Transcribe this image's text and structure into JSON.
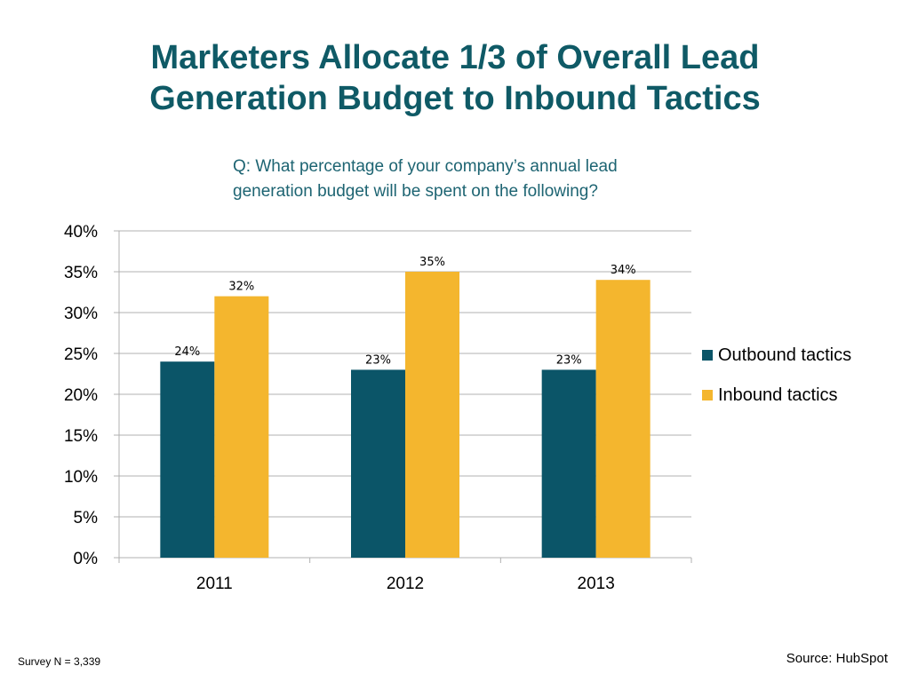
{
  "slide": {
    "title_line1": "Marketers Allocate 1/3 of Overall Lead",
    "title_line2": "Generation Budget to Inbound Tactics",
    "question_line1": "Q: What percentage of your company’s annual lead",
    "question_line2": "generation budget will be spent on the following?",
    "footer_left": "Survey N = 3,339",
    "footer_right": "Source: HubSpot"
  },
  "colors": {
    "title": "#0f5a66",
    "outbound": "#0b5568",
    "inbound": "#f4b62e",
    "grid": "#b0b0b0"
  },
  "chart_data": {
    "type": "bar",
    "categories": [
      "2011",
      "2012",
      "2013"
    ],
    "series": [
      {
        "name": "Outbound tactics",
        "values": [
          24,
          23,
          23
        ],
        "labels": [
          "24%",
          "23%",
          "23%"
        ],
        "color": "#0b5568"
      },
      {
        "name": "Inbound tactics",
        "values": [
          32,
          35,
          34
        ],
        "labels": [
          "32%",
          "35%",
          "34%"
        ],
        "color": "#f4b62e"
      }
    ],
    "ylim": [
      0,
      40
    ],
    "yticks": [
      0,
      5,
      10,
      15,
      20,
      25,
      30,
      35,
      40
    ],
    "ytick_labels": [
      "0%",
      "5%",
      "10%",
      "15%",
      "20%",
      "25%",
      "30%",
      "35%",
      "40%"
    ],
    "grid": true,
    "legend_position": "right"
  }
}
